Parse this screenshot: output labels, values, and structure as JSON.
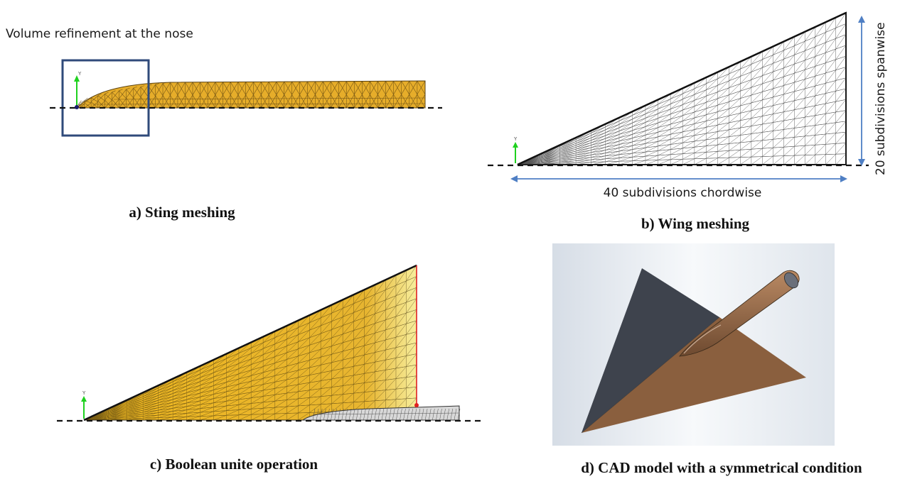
{
  "panel_a": {
    "annotation": "Volume refinement at the nose",
    "caption": "a)  Sting meshing",
    "axis_label": "Y"
  },
  "panel_b": {
    "spanwise_label": "20 subdivisions spanwise",
    "chordwise_label": "40 subdivisions chordwise",
    "caption": "b)  Wing meshing",
    "axis_label": "Y"
  },
  "panel_c": {
    "caption": "c)  Boolean unite operation",
    "axis_label": "Y"
  },
  "panel_d": {
    "caption": "d)  CAD model with a symmetrical condition"
  },
  "colors": {
    "mesh_fill": "#e8b62a",
    "mesh_line": "#4a3a10",
    "highlight_box": "#2f4a7a",
    "dimension_arrow": "#4f7fc4",
    "cad_gray": "#3e434d",
    "cad_brown": "#8a5f3e"
  }
}
